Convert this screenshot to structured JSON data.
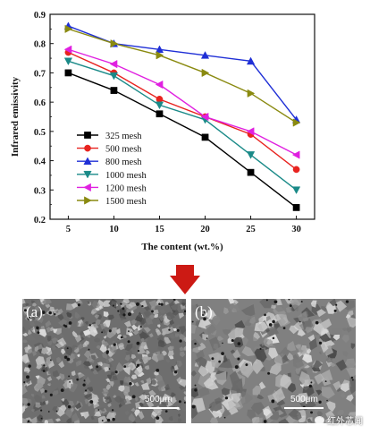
{
  "chart_data": {
    "type": "line",
    "x": [
      5,
      10,
      15,
      20,
      25,
      30
    ],
    "xlabel": "The content (wt.%)",
    "ylabel": "Infrared emissivity",
    "xlim": [
      3,
      32
    ],
    "ylim": [
      0.2,
      0.9
    ],
    "xticks": [
      "5",
      "10",
      "15",
      "20",
      "25",
      "30"
    ],
    "yticks": [
      "0.2",
      "0.3",
      "0.4",
      "0.5",
      "0.6",
      "0.7",
      "0.8",
      "0.9"
    ],
    "legend_position": "lower-left",
    "grid": false,
    "series": [
      {
        "name": "325 mesh",
        "color": "#000000",
        "marker": "square",
        "values": [
          0.7,
          0.64,
          0.56,
          0.48,
          0.36,
          0.24
        ]
      },
      {
        "name": "500 mesh",
        "color": "#e8231f",
        "marker": "circle",
        "values": [
          0.77,
          0.7,
          0.61,
          0.55,
          0.49,
          0.37
        ]
      },
      {
        "name": "800 mesh",
        "color": "#1f2fd6",
        "marker": "triangle-up",
        "values": [
          0.86,
          0.8,
          0.78,
          0.76,
          0.74,
          0.54
        ]
      },
      {
        "name": "1000 mesh",
        "color": "#1a8a88",
        "marker": "triangle-down",
        "values": [
          0.74,
          0.69,
          0.59,
          0.54,
          0.42,
          0.3
        ]
      },
      {
        "name": "1200 mesh",
        "color": "#e020e0",
        "marker": "triangle-left",
        "values": [
          0.78,
          0.73,
          0.66,
          0.55,
          0.5,
          0.42
        ]
      },
      {
        "name": "1500 mesh",
        "color": "#8a8a10",
        "marker": "triangle-right",
        "values": [
          0.85,
          0.8,
          0.76,
          0.7,
          0.63,
          0.53
        ]
      }
    ]
  },
  "arrow": {
    "color": "#cc1a14",
    "icon": "down-arrow-icon"
  },
  "sem_images": [
    {
      "label": "(a)",
      "scale": "500μm",
      "texture": "fine-grain"
    },
    {
      "label": "(b)",
      "scale": "500μm",
      "texture": "coarse-grain"
    }
  ],
  "watermark": {
    "text": "红外芯闻",
    "icon": "wechat-icon"
  }
}
